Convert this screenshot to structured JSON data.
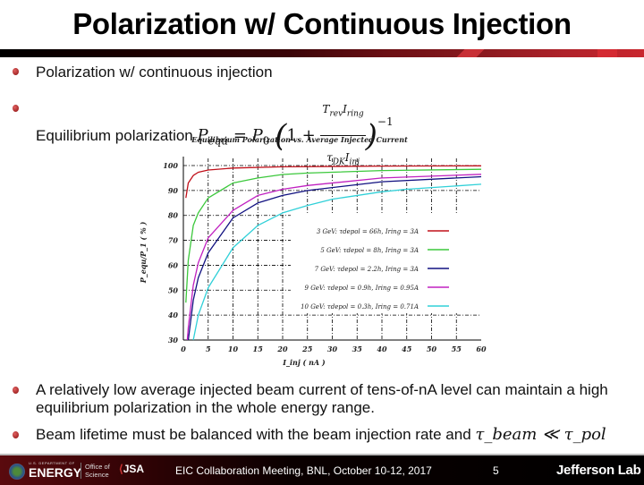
{
  "slide": {
    "title": "Polarization w/ Continuous Injection",
    "bullets": [
      {
        "text": "Polarization w/ continuous injection"
      },
      {
        "text": "Equilibrium polarization",
        "formula": {
          "lhs": "P",
          "lhs_sub": "equ",
          "eq": " = ",
          "p0": "P",
          "p0_sub": "0",
          "one_plus": "1 + ",
          "num": "T_rev I_ring",
          "den": "τ_DK I_inj",
          "exp": "−1"
        }
      },
      {
        "text": "A relatively low average injected beam current of tens-of-nA level can maintain a high equilibrium polarization in the whole energy range."
      },
      {
        "text": "Beam lifetime must be balanced with the beam injection rate and ",
        "math": "τ_beam ≪ τ_pol"
      }
    ],
    "footer": {
      "org1": "ENERGY",
      "org1_small": "U.S. DEPARTMENT OF",
      "org2_line1": "Office of",
      "org2_line2": "Science",
      "org3": "JSA",
      "meeting": "EIC Collaboration Meeting, BNL, October 10-12, 2017",
      "page": "5",
      "lab": "Jefferson Lab"
    },
    "colors": {
      "title_bar_dark": "#000000",
      "title_bar_red": "#c9262e",
      "bullet": "#a01818",
      "footer_bg": "#000000"
    }
  },
  "chart_data": {
    "type": "line",
    "title": "Equilibrium Polarization vs. Average Injected Current",
    "xlabel": "I_inj ( nA )",
    "ylabel": "P_equ/P_1 ( % )",
    "xlim": [
      0,
      60
    ],
    "ylim": [
      30,
      100
    ],
    "xticks": [
      0,
      5,
      10,
      15,
      20,
      25,
      30,
      35,
      40,
      45,
      50,
      55,
      60
    ],
    "yticks": [
      30,
      40,
      50,
      60,
      70,
      80,
      90,
      100
    ],
    "grid": true,
    "legend_position": "center-right",
    "series": [
      {
        "name": "3 GeV: τdepol = 66h, Iring = 3A",
        "color": "#c0101a",
        "x": [
          0.5,
          1,
          2,
          3,
          5,
          10,
          20,
          40,
          60
        ],
        "y": [
          87,
          93,
          96,
          97.3,
          98.2,
          99,
          99.5,
          99.8,
          99.9
        ]
      },
      {
        "name": "5 GeV: τdepol = 8h, Iring = 3A",
        "color": "#3cc83c",
        "x": [
          0.5,
          1,
          2,
          3,
          5,
          10,
          15,
          20,
          25,
          40,
          60
        ],
        "y": [
          45,
          62,
          76,
          81,
          87,
          93,
          95,
          96.4,
          97,
          98,
          98.5
        ]
      },
      {
        "name": "7 GeV: τdepol = 2.2h, Iring = 3A",
        "color": "#101080",
        "x": [
          1,
          2,
          3,
          5,
          10,
          15,
          20,
          25,
          40,
          60
        ],
        "y": [
          30,
          46,
          55,
          65,
          79,
          85,
          88,
          90,
          93.5,
          95.5
        ]
      },
      {
        "name": "9 GeV: τdepol = 0.9h, Iring = 0.95A",
        "color": "#c020c0",
        "x": [
          0.8,
          1,
          2,
          3,
          5,
          10,
          15,
          20,
          25,
          40,
          60
        ],
        "y": [
          30,
          35,
          52,
          61,
          71,
          82,
          88,
          90.5,
          92,
          95,
          96.5
        ]
      },
      {
        "name": "10 GeV: τdepol = 0.3h, Iring = 0.71A",
        "color": "#30d0d8",
        "x": [
          2,
          3,
          5,
          10,
          15,
          20,
          25,
          30,
          40,
          45,
          60
        ],
        "y": [
          30,
          40,
          51,
          67,
          76,
          81,
          84,
          86.5,
          89.5,
          90.5,
          92.5
        ]
      }
    ]
  }
}
